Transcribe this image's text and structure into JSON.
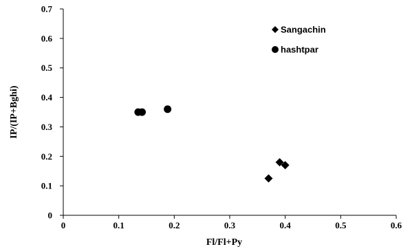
{
  "chart_data": {
    "type": "scatter",
    "title": "",
    "xlabel": "Fl/Fl+Py",
    "ylabel": "IP/(IP+Bghi)",
    "xlim": [
      0,
      0.6
    ],
    "ylim": [
      0,
      0.7
    ],
    "x_ticks": [
      "0",
      "0.1",
      "0.2",
      "0.3",
      "0.4",
      "0.5",
      "0.6"
    ],
    "y_ticks": [
      "0",
      "0.1",
      "0.2",
      "0.3",
      "0.4",
      "0.5",
      "0.6",
      "0.7"
    ],
    "grid": false,
    "legend_position": "top-right",
    "series": [
      {
        "name": "Sangachin",
        "marker": "diamond",
        "color": "#000000",
        "points": [
          {
            "x": 0.37,
            "y": 0.125
          },
          {
            "x": 0.39,
            "y": 0.18
          },
          {
            "x": 0.4,
            "y": 0.17
          }
        ]
      },
      {
        "name": "hashtpar",
        "marker": "circle",
        "color": "#000000",
        "points": [
          {
            "x": 0.135,
            "y": 0.35
          },
          {
            "x": 0.142,
            "y": 0.35
          },
          {
            "x": 0.188,
            "y": 0.36
          }
        ]
      }
    ]
  }
}
